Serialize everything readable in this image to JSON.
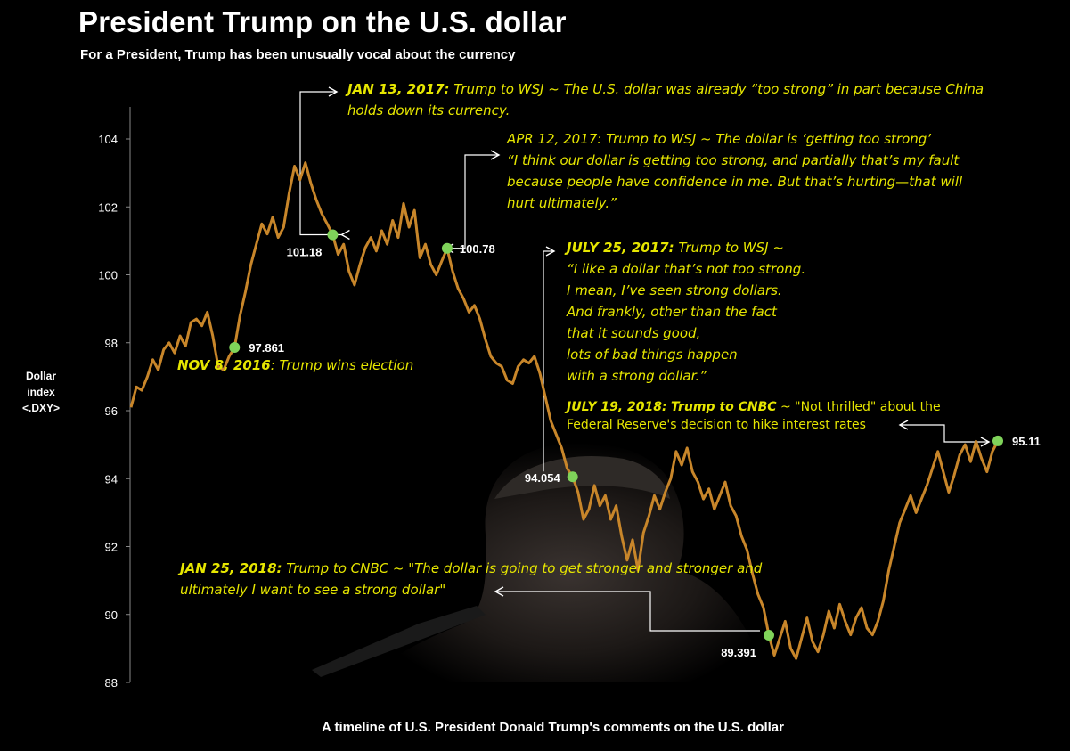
{
  "title": "President Trump on the U.S. dollar",
  "subtitle": "For a President, Trump has been unusually vocal about the currency",
  "caption": "A timeline of U.S. President Donald Trump's comments on the U.S. dollar",
  "ylabel": [
    "Dollar",
    "index",
    "<.DXY>"
  ],
  "colors": {
    "line": "#c8862a",
    "marker": "#7fd35a",
    "annotation": "#e6e600",
    "arrow": "#ffffff",
    "background": "#000000"
  },
  "annotations": {
    "nov2016": {
      "date": "NOV 8, 2016",
      "sep": ":",
      "text": " Trump wins election"
    },
    "jan2017": {
      "date": "JAN 13, 2017:",
      "lines": [
        " Trump to WSJ ~ The U.S. dollar was already “too strong” in part because China",
        "holds down its currency."
      ]
    },
    "apr2017": {
      "lines": [
        "APR 12, 2017:  Trump to WSJ ~ The dollar is ‘getting too strong’",
        "“I think our dollar is getting too strong, and partially that’s my fault",
        "because people have confidence in me. But that’s hurting—that will",
        "hurt ultimately.”"
      ]
    },
    "jul2017": {
      "date": "JULY 25, 2017:",
      "lines": [
        " Trump to WSJ ~",
        "“I like a dollar that’s not too strong.",
        "I mean, I’ve seen strong dollars.",
        "And frankly, other than the fact",
        "that it sounds good,",
        "lots of bad things happen",
        " with a strong dollar.”"
      ]
    },
    "jan2018": {
      "date": "JAN 25, 2018:",
      "lines": " Trump to CNBC ~ \"The dollar is going to get stronger and stronger and",
      "line2": "ultimately I want to see a strong dollar\""
    },
    "jul2018": {
      "date": "JULY 19, 2018:",
      "who": "Trump to CNBC",
      "rest": "~  \"Not thrilled\" about the",
      "line2": "Federal Reserve's decision to hike interest rates"
    }
  },
  "chart_data": {
    "type": "line",
    "title": "President Trump on the U.S. dollar",
    "ylabel": "Dollar index <.DXY>",
    "ylim": [
      88,
      104
    ],
    "yticks": [
      88,
      90,
      92,
      94,
      96,
      98,
      100,
      102,
      104
    ],
    "x_range": [
      "2016-10",
      "2018-07"
    ],
    "series": [
      {
        "values": [
          96.1,
          96.7,
          96.6,
          97.0,
          97.5,
          97.2,
          97.8,
          98.0,
          97.7,
          98.2,
          97.9,
          98.6,
          98.7,
          98.5,
          98.9,
          98.2,
          97.3,
          97.2,
          97.6,
          97.861,
          98.8,
          99.5,
          100.3,
          100.9,
          101.5,
          101.2,
          101.7,
          101.1,
          101.4,
          102.4,
          103.2,
          102.8,
          103.3,
          102.7,
          102.2,
          101.8,
          101.5,
          101.18,
          100.6,
          100.9,
          100.1,
          99.7,
          100.3,
          100.8,
          101.1,
          100.7,
          101.3,
          100.9,
          101.6,
          101.1,
          102.1,
          101.4,
          101.9,
          100.5,
          100.9,
          100.3,
          100.0,
          100.4,
          100.78,
          100.1,
          99.6,
          99.3,
          98.9,
          99.1,
          98.7,
          98.1,
          97.6,
          97.4,
          97.3,
          96.9,
          96.8,
          97.3,
          97.5,
          97.4,
          97.6,
          97.1,
          96.4,
          95.7,
          95.3,
          94.9,
          94.3,
          94.054,
          93.6,
          92.8,
          93.1,
          93.8,
          93.2,
          93.5,
          92.8,
          93.2,
          92.3,
          91.6,
          92.2,
          91.3,
          92.4,
          92.9,
          93.5,
          93.1,
          93.6,
          94.0,
          94.8,
          94.4,
          94.9,
          94.2,
          93.9,
          93.4,
          93.7,
          93.1,
          93.5,
          93.9,
          93.2,
          92.9,
          92.3,
          91.9,
          91.2,
          90.6,
          90.2,
          89.391,
          88.8,
          89.3,
          89.8,
          89.0,
          88.7,
          89.3,
          89.9,
          89.2,
          88.9,
          89.4,
          90.1,
          89.6,
          90.3,
          89.8,
          89.4,
          89.9,
          90.2,
          89.6,
          89.4,
          89.8,
          90.4,
          91.3,
          92.0,
          92.7,
          93.1,
          93.5,
          93.0,
          93.4,
          93.8,
          94.3,
          94.8,
          94.2,
          93.6,
          94.1,
          94.7,
          95.0,
          94.5,
          95.1,
          94.6,
          94.2,
          94.8,
          95.11
        ]
      }
    ],
    "data_labels": [
      {
        "value": 97.861,
        "text": "97.861"
      },
      {
        "value": 101.18,
        "text": "101.18"
      },
      {
        "value": 100.78,
        "text": "100.78"
      },
      {
        "value": 94.054,
        "text": "94.054"
      },
      {
        "value": 89.391,
        "text": "89.391"
      },
      {
        "value": 95.11,
        "text": "95.11"
      }
    ],
    "grid": false,
    "legend": "none"
  }
}
